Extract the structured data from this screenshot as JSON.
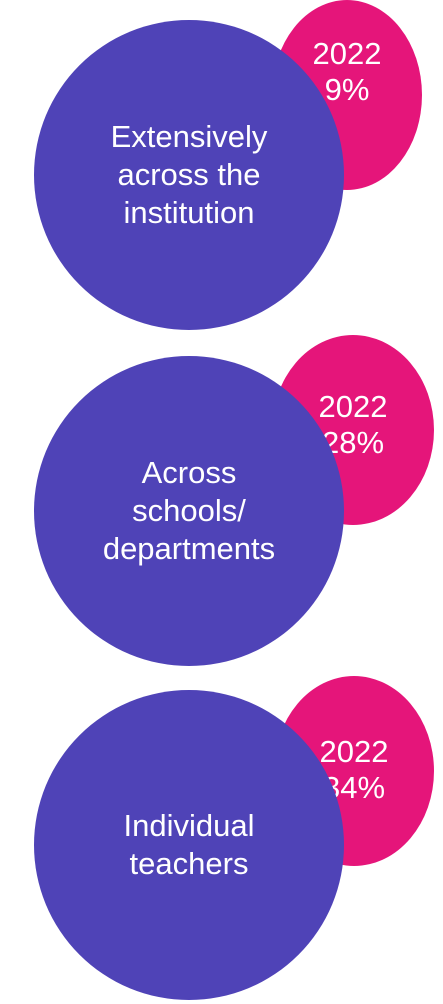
{
  "colors": {
    "primary": "#4f43b7",
    "accent": "#e5157a",
    "text": "#ffffff"
  },
  "groups": [
    {
      "label": "Extensively across the institution",
      "year": "2022",
      "value": "9%"
    },
    {
      "label": "Across schools/ departments",
      "year": "2022",
      "value": "28%"
    },
    {
      "label": "Individual teachers",
      "year": "2022",
      "value": "34%"
    }
  ]
}
